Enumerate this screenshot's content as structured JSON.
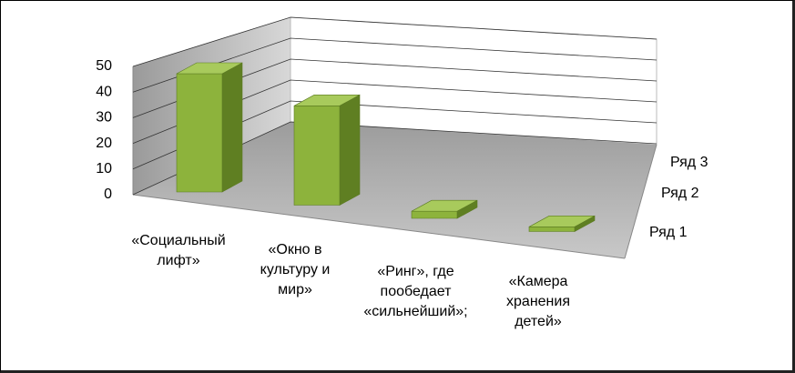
{
  "chart_data": {
    "type": "bar3d",
    "categories": [
      "«Социальный лифт»",
      "«Окно в культуру и мир»",
      "«Ринг», где пообедает «сильнейший»;",
      "«Камера хранения детей»"
    ],
    "series": [
      {
        "name": "Ряд 1",
        "color": "#8db33c",
        "values": [
          50,
          42,
          3,
          2
        ]
      },
      {
        "name": "Ряд 2",
        "color": "#4f81bd",
        "values": [
          null,
          null,
          null,
          null
        ]
      },
      {
        "name": "Ряд 3",
        "color": "#c0504d",
        "values": [
          null,
          null,
          null,
          null
        ]
      }
    ],
    "ylim": [
      0,
      50
    ],
    "yticks": [
      0,
      10,
      20,
      30,
      40,
      50
    ],
    "grid": true
  }
}
